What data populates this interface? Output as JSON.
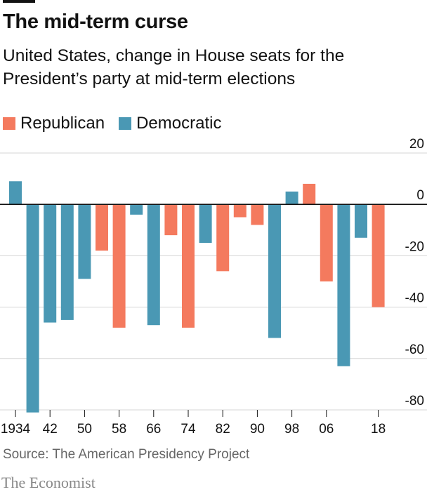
{
  "colors": {
    "republican": "#F47A5E",
    "democratic": "#4A98B4",
    "grid": "#D6D6D6",
    "zero": "#121212",
    "text": "#121212"
  },
  "chart_data": {
    "type": "bar",
    "title": "The mid-term curse",
    "subtitle": "United States, change in House seats for the President’s party at mid-term elections",
    "legend": [
      {
        "key": "republican",
        "label": "Republican"
      },
      {
        "key": "democratic",
        "label": "Democratic"
      }
    ],
    "legend_position": "top-left",
    "y_axis_position": "right",
    "grid": true,
    "ylim": [
      -80,
      20
    ],
    "yticks": [
      20,
      0,
      -20,
      -40,
      -60,
      -80
    ],
    "x_tick_labels": [
      "1934",
      "42",
      "50",
      "58",
      "66",
      "74",
      "82",
      "90",
      "98",
      "06",
      "18"
    ],
    "x_tick_years": [
      1934,
      1942,
      1950,
      1958,
      1966,
      1974,
      1982,
      1990,
      1998,
      2006,
      2018
    ],
    "bars": [
      {
        "year": 1934,
        "party": "democratic",
        "value": 9
      },
      {
        "year": 1938,
        "party": "democratic",
        "value": -81
      },
      {
        "year": 1942,
        "party": "democratic",
        "value": -46
      },
      {
        "year": 1946,
        "party": "democratic",
        "value": -45
      },
      {
        "year": 1950,
        "party": "democratic",
        "value": -29
      },
      {
        "year": 1954,
        "party": "republican",
        "value": -18
      },
      {
        "year": 1958,
        "party": "republican",
        "value": -48
      },
      {
        "year": 1962,
        "party": "democratic",
        "value": -4
      },
      {
        "year": 1966,
        "party": "democratic",
        "value": -47
      },
      {
        "year": 1970,
        "party": "republican",
        "value": -12
      },
      {
        "year": 1974,
        "party": "republican",
        "value": -48
      },
      {
        "year": 1978,
        "party": "democratic",
        "value": -15
      },
      {
        "year": 1982,
        "party": "republican",
        "value": -26
      },
      {
        "year": 1986,
        "party": "republican",
        "value": -5
      },
      {
        "year": 1990,
        "party": "republican",
        "value": -8
      },
      {
        "year": 1994,
        "party": "democratic",
        "value": -52
      },
      {
        "year": 1998,
        "party": "democratic",
        "value": 5
      },
      {
        "year": 2002,
        "party": "republican",
        "value": 8
      },
      {
        "year": 2006,
        "party": "republican",
        "value": -30
      },
      {
        "year": 2010,
        "party": "democratic",
        "value": -63
      },
      {
        "year": 2014,
        "party": "democratic",
        "value": -13
      },
      {
        "year": 2018,
        "party": "republican",
        "value": -40
      }
    ]
  },
  "source": "Source: The American Presidency Project",
  "branding": "The Economist"
}
